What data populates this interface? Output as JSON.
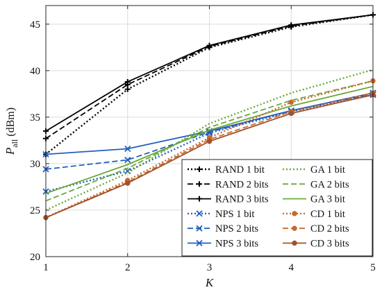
{
  "chart_data": {
    "type": "line",
    "xlabel": "K",
    "ylabel": {
      "main": "P",
      "sub": "all",
      "unit": "(dBm)"
    },
    "x": [
      1,
      2,
      3,
      4,
      5
    ],
    "xlim": [
      1,
      5
    ],
    "ylim": [
      20,
      47
    ],
    "xticks": [
      "1",
      "2",
      "3",
      "4",
      "5"
    ],
    "yticks": [
      "20",
      "25",
      "30",
      "35",
      "40",
      "45"
    ],
    "grid": true,
    "legend_position": "bottom-right",
    "series": [
      {
        "name": "RAND 1 bit",
        "values": [
          31.0,
          38.0,
          42.5,
          44.7,
          46.0
        ],
        "color": "#000000",
        "dash": "dotted",
        "marker": "plus"
      },
      {
        "name": "RAND 2 bits",
        "values": [
          32.7,
          38.5,
          42.6,
          44.8,
          46.0
        ],
        "color": "#000000",
        "dash": "dashed",
        "marker": "plus"
      },
      {
        "name": "RAND 3 bits",
        "values": [
          33.5,
          38.8,
          42.7,
          44.9,
          46.0
        ],
        "color": "#000000",
        "dash": "solid",
        "marker": "plus"
      },
      {
        "name": "NPS 1 bit",
        "values": [
          27.0,
          29.2,
          33.3,
          35.6,
          37.4
        ],
        "color": "#1f5fbf",
        "dash": "dotted",
        "marker": "x"
      },
      {
        "name": "NPS 2 bits",
        "values": [
          29.4,
          30.4,
          33.4,
          35.7,
          37.5
        ],
        "color": "#1f5fbf",
        "dash": "dashed",
        "marker": "x"
      },
      {
        "name": "NPS 3 bits",
        "values": [
          31.0,
          31.6,
          33.5,
          35.7,
          37.6
        ],
        "color": "#1f5fbf",
        "dash": "solid",
        "marker": "x"
      },
      {
        "name": "GA 1 bit",
        "values": [
          25.0,
          29.0,
          34.3,
          37.6,
          40.1
        ],
        "color": "#6aa83a",
        "dash": "dotted",
        "marker": "none"
      },
      {
        "name": "GA 2 bits",
        "values": [
          26.0,
          29.5,
          33.9,
          36.8,
          38.9
        ],
        "color": "#6aa83a",
        "dash": "dashed",
        "marker": "none"
      },
      {
        "name": "GA 3 bit",
        "values": [
          26.8,
          29.9,
          33.6,
          36.2,
          38.3
        ],
        "color": "#6aa83a",
        "dash": "solid",
        "marker": "none"
      },
      {
        "name": "CD 1 bit",
        "values": [
          24.2,
          28.2,
          32.8,
          36.6,
          38.9
        ],
        "color": "#c8682a",
        "dash": "dotted",
        "marker": "circle"
      },
      {
        "name": "CD 2 bits",
        "values": [
          24.2,
          28.0,
          32.6,
          35.6,
          37.6
        ],
        "color": "#c8682a",
        "dash": "dashed",
        "marker": "circle"
      },
      {
        "name": "CD 3 bits",
        "values": [
          24.2,
          27.9,
          32.4,
          35.4,
          37.4
        ],
        "color": "#a0522d",
        "dash": "solid",
        "marker": "circle"
      }
    ]
  }
}
